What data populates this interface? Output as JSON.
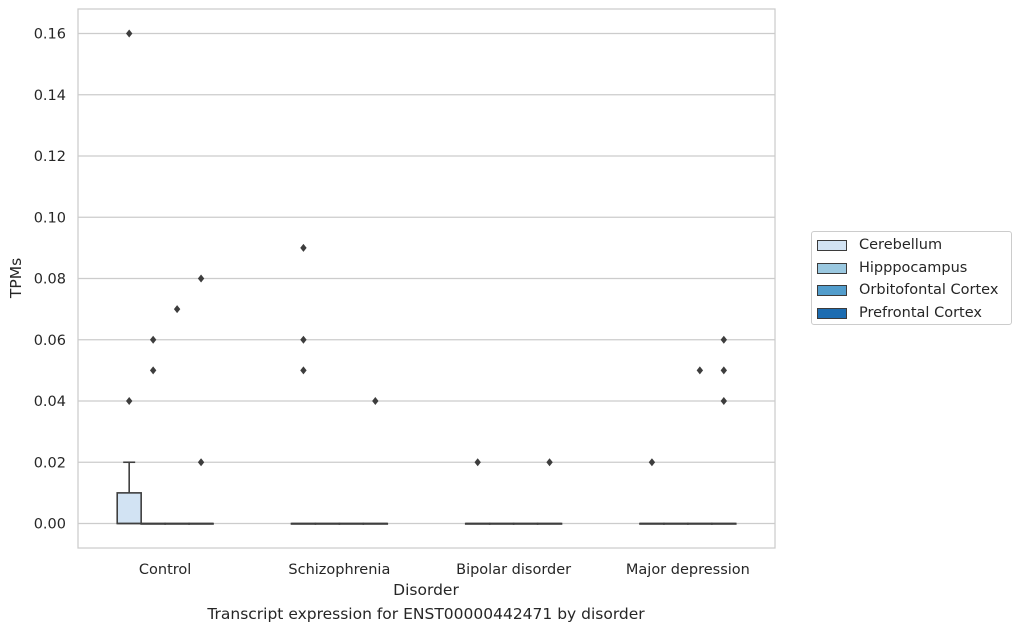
{
  "caption": "Transcript expression for ENST00000442471 by disorder",
  "chart_data": {
    "type": "box",
    "xlabel": "Disorder",
    "ylabel": "TPMs",
    "ylim": [
      -0.008,
      0.168
    ],
    "yticks": [
      0.0,
      0.02,
      0.04,
      0.06,
      0.08,
      0.1,
      0.12,
      0.14,
      0.16
    ],
    "ytick_labels": [
      "0.00",
      "0.02",
      "0.04",
      "0.06",
      "0.08",
      "0.10",
      "0.12",
      "0.14",
      "0.16"
    ],
    "grid": true,
    "legend_position": "right",
    "categories": [
      "Control",
      "Schizophrenia",
      "Bipolar disorder",
      "Major depression"
    ],
    "hue": [
      {
        "name": "Cerebellum",
        "color": "#d2e3f3"
      },
      {
        "name": "Hipppocampus",
        "color": "#9ac8e0"
      },
      {
        "name": "Orbitofontal Cortex",
        "color": "#529dcc"
      },
      {
        "name": "Prefrontal Cortex",
        "color": "#1c6cb1"
      }
    ],
    "boxes": [
      {
        "category": "Control",
        "hue": "Cerebellum",
        "q1": 0.0,
        "median": 0.0,
        "q3": 0.01,
        "whisker_low": 0.0,
        "whisker_high": 0.02,
        "outliers": [
          0.16,
          0.04
        ]
      },
      {
        "category": "Control",
        "hue": "Hipppocampus",
        "q1": 0.0,
        "median": 0.0,
        "q3": 0.0,
        "whisker_low": 0.0,
        "whisker_high": 0.0,
        "outliers": [
          0.06,
          0.05
        ]
      },
      {
        "category": "Control",
        "hue": "Orbitofontal Cortex",
        "q1": 0.0,
        "median": 0.0,
        "q3": 0.0,
        "whisker_low": 0.0,
        "whisker_high": 0.0,
        "outliers": [
          0.07
        ]
      },
      {
        "category": "Control",
        "hue": "Prefrontal Cortex",
        "q1": 0.0,
        "median": 0.0,
        "q3": 0.0,
        "whisker_low": 0.0,
        "whisker_high": 0.0,
        "outliers": [
          0.08,
          0.02
        ]
      },
      {
        "category": "Schizophrenia",
        "hue": "Cerebellum",
        "q1": 0.0,
        "median": 0.0,
        "q3": 0.0,
        "whisker_low": 0.0,
        "whisker_high": 0.0,
        "outliers": [
          0.09,
          0.06,
          0.05
        ]
      },
      {
        "category": "Schizophrenia",
        "hue": "Hipppocampus",
        "q1": 0.0,
        "median": 0.0,
        "q3": 0.0,
        "whisker_low": 0.0,
        "whisker_high": 0.0,
        "outliers": []
      },
      {
        "category": "Schizophrenia",
        "hue": "Orbitofontal Cortex",
        "q1": 0.0,
        "median": 0.0,
        "q3": 0.0,
        "whisker_low": 0.0,
        "whisker_high": 0.0,
        "outliers": []
      },
      {
        "category": "Schizophrenia",
        "hue": "Prefrontal Cortex",
        "q1": 0.0,
        "median": 0.0,
        "q3": 0.0,
        "whisker_low": 0.0,
        "whisker_high": 0.0,
        "outliers": [
          0.04
        ]
      },
      {
        "category": "Bipolar disorder",
        "hue": "Cerebellum",
        "q1": 0.0,
        "median": 0.0,
        "q3": 0.0,
        "whisker_low": 0.0,
        "whisker_high": 0.0,
        "outliers": [
          0.02
        ]
      },
      {
        "category": "Bipolar disorder",
        "hue": "Hipppocampus",
        "q1": 0.0,
        "median": 0.0,
        "q3": 0.0,
        "whisker_low": 0.0,
        "whisker_high": 0.0,
        "outliers": []
      },
      {
        "category": "Bipolar disorder",
        "hue": "Orbitofontal Cortex",
        "q1": 0.0,
        "median": 0.0,
        "q3": 0.0,
        "whisker_low": 0.0,
        "whisker_high": 0.0,
        "outliers": []
      },
      {
        "category": "Bipolar disorder",
        "hue": "Prefrontal Cortex",
        "q1": 0.0,
        "median": 0.0,
        "q3": 0.0,
        "whisker_low": 0.0,
        "whisker_high": 0.0,
        "outliers": [
          0.02
        ]
      },
      {
        "category": "Major depression",
        "hue": "Cerebellum",
        "q1": 0.0,
        "median": 0.0,
        "q3": 0.0,
        "whisker_low": 0.0,
        "whisker_high": 0.0,
        "outliers": [
          0.02
        ]
      },
      {
        "category": "Major depression",
        "hue": "Hipppocampus",
        "q1": 0.0,
        "median": 0.0,
        "q3": 0.0,
        "whisker_low": 0.0,
        "whisker_high": 0.0,
        "outliers": []
      },
      {
        "category": "Major depression",
        "hue": "Orbitofontal Cortex",
        "q1": 0.0,
        "median": 0.0,
        "q3": 0.0,
        "whisker_low": 0.0,
        "whisker_high": 0.0,
        "outliers": [
          0.05
        ]
      },
      {
        "category": "Major depression",
        "hue": "Prefrontal Cortex",
        "q1": 0.0,
        "median": 0.0,
        "q3": 0.0,
        "whisker_low": 0.0,
        "whisker_high": 0.0,
        "outliers": [
          0.06,
          0.05,
          0.04
        ]
      }
    ]
  }
}
